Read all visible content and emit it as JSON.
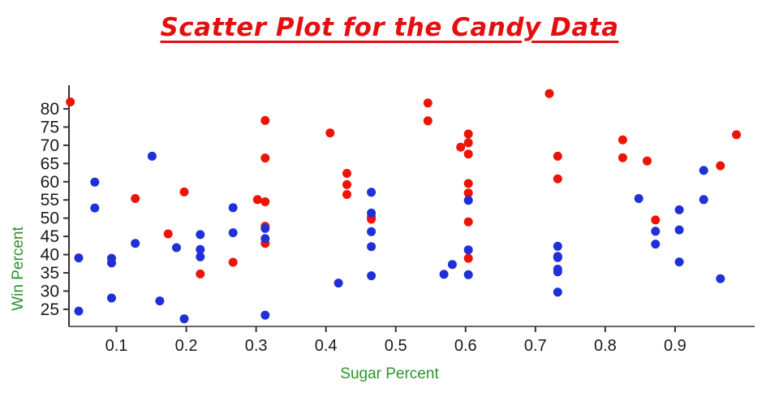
{
  "chart_data": {
    "type": "scatter",
    "title": "Scatter Plot for the Candy Data",
    "xlabel": "Sugar Percent",
    "ylabel": "Win Percent",
    "xlim": [
      0.032,
      1.014
    ],
    "ylim": [
      20.3,
      85.8
    ],
    "grid": false,
    "legend": "none",
    "x_ticks": [
      0.1,
      0.2,
      0.3,
      0.4,
      0.5,
      0.6,
      0.7,
      0.8,
      0.9
    ],
    "x_tick_labels": [
      "0.1",
      "0.2",
      "0.3",
      "0.4",
      "0.5",
      "0.6",
      "0.7",
      "0.8",
      "0.9"
    ],
    "y_ticks": [
      25,
      30,
      35,
      40,
      45,
      50,
      55,
      60,
      65,
      70,
      75,
      80
    ],
    "y_tick_labels": [
      "25",
      "30",
      "35",
      "40",
      "45",
      "50",
      "55",
      "60",
      "65",
      "70",
      "75",
      "80"
    ],
    "colors": {
      "title": "#e60f0f",
      "axis_labels": "#2b932b",
      "tick_labels": "#1a1a1a",
      "axis_line": "#333333",
      "red_series": "#ee1306",
      "blue_series": "#1f30d8"
    },
    "point_radius": 5.5,
    "series": [
      {
        "name": "red",
        "color": "#ee1306",
        "points": [
          [
            0.034,
            81.9
          ],
          [
            0.127,
            55.4
          ],
          [
            0.174,
            45.7
          ],
          [
            0.197,
            57.2
          ],
          [
            0.22,
            34.7
          ],
          [
            0.267,
            37.9
          ],
          [
            0.302,
            55.1
          ],
          [
            0.313,
            76.8
          ],
          [
            0.313,
            66.5
          ],
          [
            0.313,
            54.5
          ],
          [
            0.313,
            47.8
          ],
          [
            0.313,
            43.1
          ],
          [
            0.406,
            73.4
          ],
          [
            0.43,
            62.3
          ],
          [
            0.43,
            59.2
          ],
          [
            0.43,
            56.5
          ],
          [
            0.465,
            50.3
          ],
          [
            0.465,
            49.7
          ],
          [
            0.546,
            81.6
          ],
          [
            0.546,
            76.7
          ],
          [
            0.593,
            69.5
          ],
          [
            0.604,
            73.1
          ],
          [
            0.604,
            70.7
          ],
          [
            0.604,
            67.6
          ],
          [
            0.604,
            59.5
          ],
          [
            0.604,
            56.9
          ],
          [
            0.604,
            49.0
          ],
          [
            0.604,
            39.0
          ],
          [
            0.72,
            84.2
          ],
          [
            0.732,
            67.0
          ],
          [
            0.732,
            60.8
          ],
          [
            0.825,
            71.5
          ],
          [
            0.825,
            66.6
          ],
          [
            0.86,
            65.7
          ],
          [
            0.872,
            49.5
          ],
          [
            0.965,
            64.4
          ],
          [
            0.988,
            72.9
          ]
        ]
      },
      {
        "name": "blue",
        "color": "#1f30d8",
        "points": [
          [
            0.046,
            39.1
          ],
          [
            0.046,
            24.5
          ],
          [
            0.069,
            59.9
          ],
          [
            0.069,
            52.8
          ],
          [
            0.093,
            39.0
          ],
          [
            0.093,
            37.7
          ],
          [
            0.093,
            28.1
          ],
          [
            0.127,
            43.1
          ],
          [
            0.151,
            67.0
          ],
          [
            0.162,
            27.3
          ],
          [
            0.186,
            41.9
          ],
          [
            0.197,
            22.4
          ],
          [
            0.22,
            45.5
          ],
          [
            0.22,
            41.4
          ],
          [
            0.22,
            39.4
          ],
          [
            0.267,
            52.9
          ],
          [
            0.267,
            46.0
          ],
          [
            0.313,
            47.2
          ],
          [
            0.313,
            44.4
          ],
          [
            0.313,
            23.4
          ],
          [
            0.418,
            32.2
          ],
          [
            0.465,
            57.1
          ],
          [
            0.465,
            51.4
          ],
          [
            0.465,
            46.3
          ],
          [
            0.465,
            42.2
          ],
          [
            0.465,
            34.2
          ],
          [
            0.569,
            34.6
          ],
          [
            0.581,
            37.3
          ],
          [
            0.604,
            54.9
          ],
          [
            0.604,
            41.3
          ],
          [
            0.604,
            34.5
          ],
          [
            0.732,
            42.3
          ],
          [
            0.732,
            39.5
          ],
          [
            0.732,
            39.2
          ],
          [
            0.732,
            36.0
          ],
          [
            0.732,
            35.3
          ],
          [
            0.732,
            29.7
          ],
          [
            0.848,
            55.4
          ],
          [
            0.872,
            46.4
          ],
          [
            0.872,
            42.9
          ],
          [
            0.906,
            52.3
          ],
          [
            0.906,
            46.8
          ],
          [
            0.906,
            38.0
          ],
          [
            0.941,
            63.1
          ],
          [
            0.941,
            55.1
          ],
          [
            0.965,
            33.4
          ]
        ]
      }
    ]
  }
}
